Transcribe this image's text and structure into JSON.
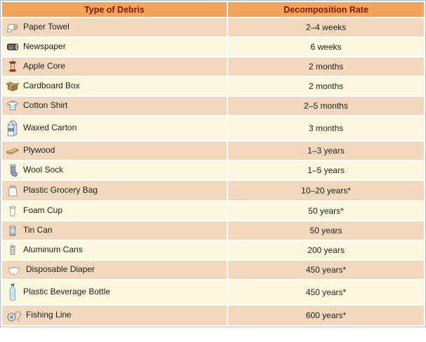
{
  "chart_data": {
    "type": "table",
    "columns": [
      "Type of Debris",
      "Decomposition Rate"
    ],
    "rows": [
      {
        "icon": "paper-towel-icon",
        "debris": "Paper Towel",
        "rate": "2–4 weeks"
      },
      {
        "icon": "newspaper-icon",
        "debris": "Newspaper",
        "rate": "6 weeks"
      },
      {
        "icon": "apple-core-icon",
        "debris": "Apple Core",
        "rate": "2 months"
      },
      {
        "icon": "cardboard-box-icon",
        "debris": "Cardboard Box",
        "rate": "2 months"
      },
      {
        "icon": "cotton-shirt-icon",
        "debris": "Cotton Shirt",
        "rate": "2–5 months"
      },
      {
        "icon": "waxed-carton-icon",
        "debris": "Waxed Carton",
        "rate": "3 months"
      },
      {
        "icon": "plywood-icon",
        "debris": "Plywood",
        "rate": "1–3 years"
      },
      {
        "icon": "wool-sock-icon",
        "debris": "Wool Sock",
        "rate": "1–5 years"
      },
      {
        "icon": "plastic-grocery-bag-icon",
        "debris": "Plastic Grocery Bag",
        "rate": "10–20 years*"
      },
      {
        "icon": "foam-cup-icon",
        "debris": "Foam Cup",
        "rate": "50 years*"
      },
      {
        "icon": "tin-can-icon",
        "debris": "Tin Can",
        "rate": "50 years"
      },
      {
        "icon": "aluminum-cans-icon",
        "debris": "Aluminum Cans",
        "rate": "200 years"
      },
      {
        "icon": "disposable-diaper-icon",
        "debris": "Disposable Diaper",
        "rate": "450 years*"
      },
      {
        "icon": "plastic-beverage-bottle-icon",
        "debris": "Plastic Beverage Bottle",
        "rate": "450 years*"
      },
      {
        "icon": "fishing-line-icon",
        "debris": "Fishing Line",
        "rate": "600 years*"
      }
    ]
  },
  "colors": {
    "header_bg": "#F2A45C",
    "header_text": "#8A1500",
    "row_peach": "#F2D9BD",
    "row_cream": "#FDF7DE",
    "grid_line": "#FFFFFF",
    "outer_border": "#B9B9B9",
    "cell_text": "#1D1D1D"
  }
}
